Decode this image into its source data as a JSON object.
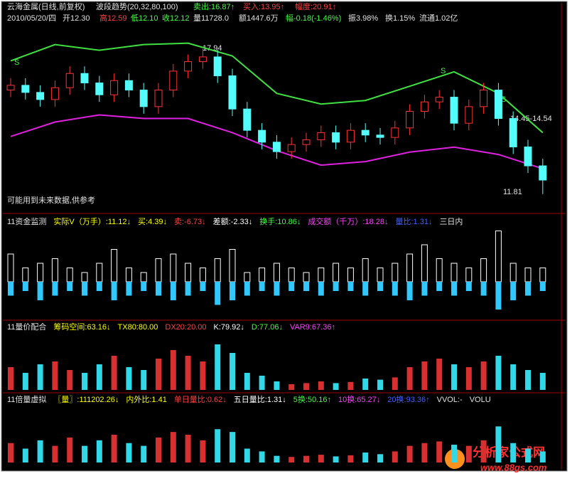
{
  "header": {
    "title": "云海金属(日线,前复权)",
    "indicator": "波段趋势(20,32,80,100)",
    "sell": "卖出:16.87↑",
    "buy": "买入:13.95↑",
    "amp": "幅度:20.91↑",
    "date": "2010/05/20/四",
    "open": "开12.30",
    "high": "高12.59",
    "low": "低12.10",
    "close": "收12.12",
    "volume": "量11728.0",
    "amount": "额1447.6万",
    "change": "幅-0.18(-1.46%)",
    "swing": "振3.98%",
    "turnover": "换1.15%",
    "float": "流通1.02亿"
  },
  "annotations": {
    "peak": "17.94",
    "range": "14.45-14.54",
    "bottom": "11.81",
    "warning": "可能用到未来数据,供参考",
    "signal": "S"
  },
  "panel2": {
    "labels": [
      "11资金监测",
      "实际V（万手）:11.12↓",
      "买:4.39↓",
      "卖:-6.73↓",
      "差额:-2.33↓",
      "换手:10.86↓",
      "成交额（千万）:18.28↓",
      "量比:1.31↓",
      "三日内"
    ]
  },
  "panel3": {
    "labels": [
      "11量价配合",
      "筹码空间:63.16↓",
      "TX80:80.00",
      "DX20:20.00",
      "K:79.92↓",
      "D:77.06↓",
      "VAR9:67.36↑"
    ]
  },
  "panel4": {
    "labels": [
      "11倍量虚拟",
      "〖量〗:111202.26↓",
      "内外比:1.41",
      "单日量比:0.62↓",
      "五日量比:1.31↓",
      "5换:50.16↑",
      "10换:65.27↓",
      "20换:93.36↑",
      "VVOL:-",
      "VOLU"
    ]
  },
  "watermark": {
    "name": "分析家公式网",
    "url": "www.88gs.com"
  },
  "chart_data": {
    "type": "candlestick",
    "ylim": [
      11.05,
      18.8
    ],
    "opens": [
      16.2,
      16.4,
      16.1,
      15.8,
      16.3,
      16.9,
      16.5,
      16.0,
      16.6,
      16.2,
      15.5,
      16.2,
      17.0,
      17.4,
      17.6,
      16.8,
      15.4,
      14.5,
      14.0,
      13.6,
      13.9,
      14.1,
      14.4,
      14.0,
      14.5,
      14.3,
      14.2,
      14.6,
      15.3,
      15.7,
      15.9,
      14.8,
      15.5,
      16.2,
      15.0,
      13.8,
      13.0
    ],
    "closes": [
      16.4,
      16.1,
      15.8,
      16.3,
      16.9,
      16.5,
      16.0,
      16.6,
      16.2,
      15.5,
      16.2,
      17.0,
      17.4,
      17.6,
      16.8,
      15.4,
      14.5,
      14.0,
      13.6,
      13.9,
      14.1,
      14.4,
      14.0,
      14.5,
      14.3,
      14.2,
      14.6,
      15.3,
      15.7,
      15.9,
      14.8,
      15.5,
      16.2,
      15.0,
      13.8,
      13.0,
      12.4
    ],
    "highs": [
      16.7,
      16.7,
      16.4,
      16.6,
      17.2,
      17.2,
      16.8,
      16.9,
      16.9,
      16.5,
      16.5,
      17.3,
      17.7,
      17.94,
      17.9,
      17.1,
      15.7,
      14.8,
      14.3,
      14.2,
      14.4,
      14.7,
      14.7,
      14.8,
      14.8,
      14.6,
      14.9,
      15.6,
      16.0,
      16.2,
      16.2,
      15.8,
      16.5,
      16.5,
      15.3,
      14.1,
      13.3
    ],
    "lows": [
      15.9,
      15.8,
      15.5,
      15.5,
      16.0,
      16.2,
      15.7,
      15.7,
      15.9,
      15.2,
      15.2,
      15.9,
      16.7,
      17.1,
      16.5,
      15.1,
      14.2,
      13.7,
      13.3,
      13.3,
      13.6,
      13.8,
      13.7,
      13.7,
      14.0,
      13.9,
      13.9,
      14.3,
      15.0,
      15.4,
      14.5,
      14.5,
      15.2,
      14.7,
      13.5,
      12.7,
      11.81
    ],
    "band_x": [
      0,
      3,
      6,
      9,
      12,
      15,
      18,
      21,
      24,
      27,
      30,
      33,
      36
    ],
    "upper": [
      17.43,
      18.12,
      17.88,
      18.12,
      18.18,
      17.64,
      16.06,
      15.61,
      15.76,
      16.36,
      16.97,
      16.06,
      14.4
    ],
    "lower": [
      14.24,
      14.85,
      15.15,
      15.0,
      15.0,
      14.4,
      13.64,
      13.03,
      13.18,
      13.58,
      13.79,
      13.48,
      12.88
    ],
    "fund_ylim": [
      -8,
      12
    ],
    "buy": [
      6,
      3,
      4,
      5,
      3,
      2,
      4,
      7,
      3,
      2,
      5,
      6,
      4,
      3,
      5,
      7,
      2,
      3,
      4,
      3,
      2,
      3,
      4,
      3,
      5,
      3,
      4,
      6,
      8,
      5,
      4,
      3,
      5,
      11,
      4,
      3,
      3
    ],
    "sell": [
      -3,
      -2,
      -4,
      -3,
      -2,
      -3,
      -2,
      -4,
      -3,
      -2,
      -3,
      -4,
      -3,
      -2,
      -5,
      -4,
      -3,
      -2,
      -3,
      -2,
      -2,
      -3,
      -2,
      -2,
      -3,
      -2,
      -3,
      -4,
      -3,
      -2,
      -3,
      -2,
      -3,
      -6,
      -4,
      -3,
      -2
    ],
    "vol_ylim": [
      0,
      100
    ],
    "vol_a": [
      40,
      30,
      45,
      50,
      35,
      30,
      45,
      60,
      40,
      35,
      55,
      70,
      60,
      50,
      80,
      65,
      30,
      25,
      15,
      10,
      12,
      15,
      12,
      14,
      20,
      18,
      22,
      40,
      50,
      55,
      45,
      40,
      50,
      60,
      45,
      35,
      30
    ],
    "vol_b": [
      35,
      25,
      40,
      30,
      45,
      30,
      40,
      50,
      35,
      30,
      45,
      55,
      50,
      40,
      60,
      55,
      25,
      20,
      12,
      10,
      12,
      14,
      11,
      13,
      18,
      15,
      20,
      30,
      35,
      38,
      32,
      30,
      40,
      65,
      35,
      25,
      20
    ]
  }
}
